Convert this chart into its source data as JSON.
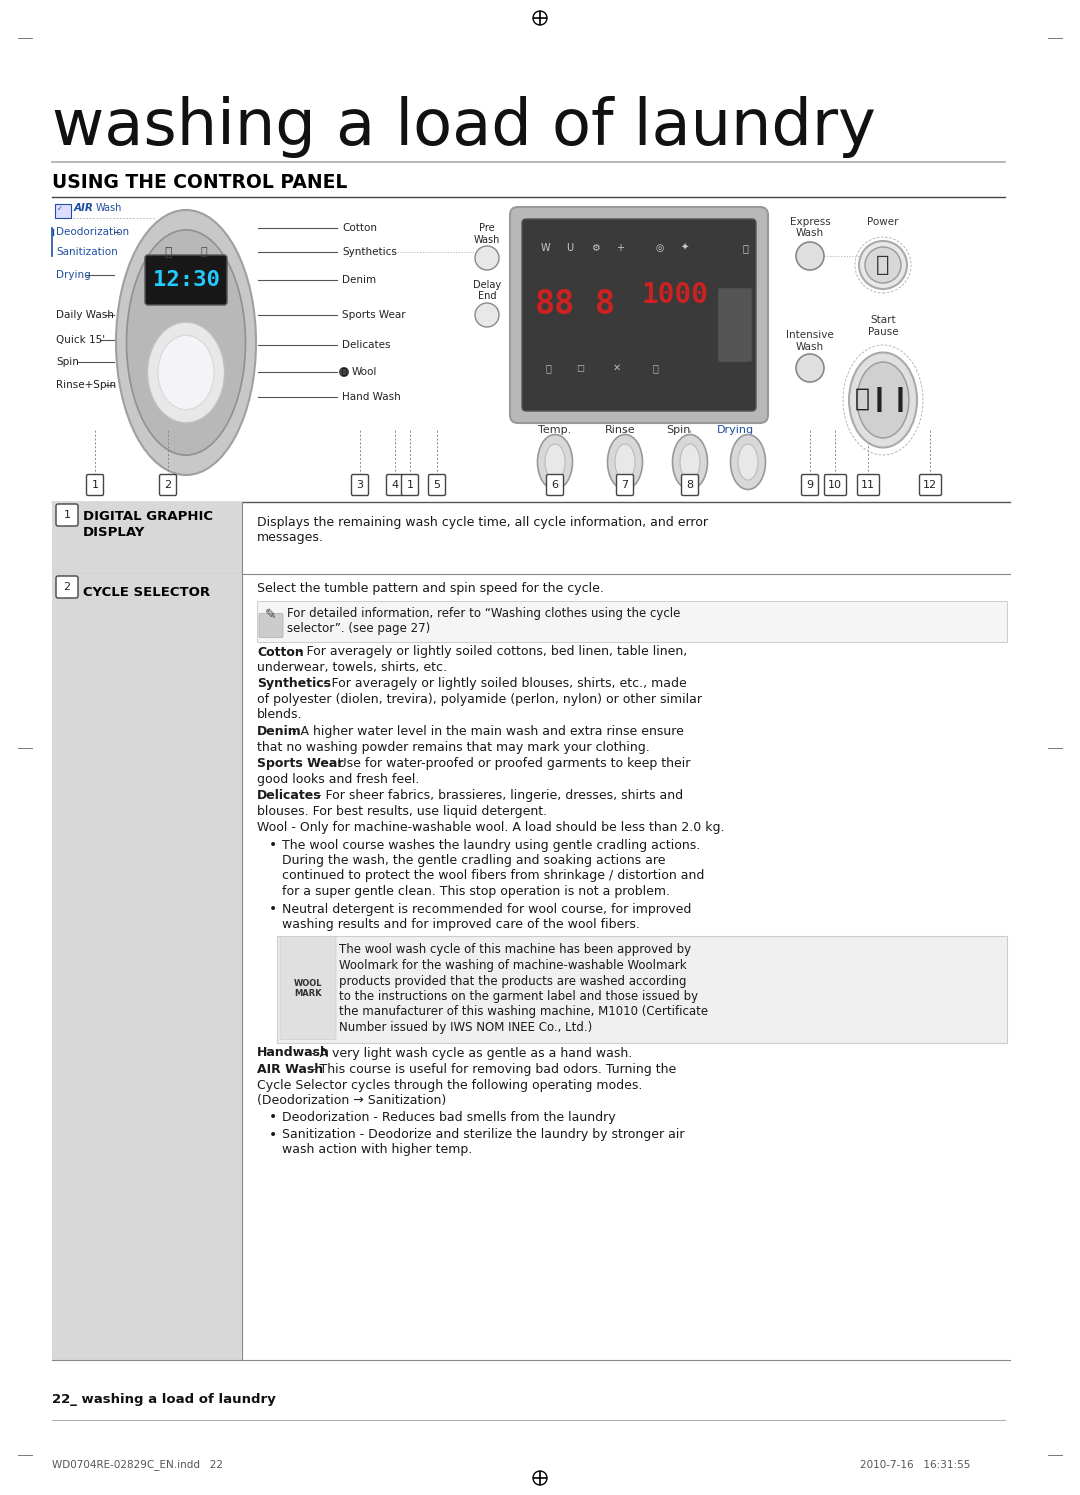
{
  "bg_color": "#ffffff",
  "title_text": "washing a load of laundry",
  "section_header": "USING THE CONTROL PANEL",
  "footer_left": "22_ washing a load of laundry",
  "footer_file": "WD0704RE-02829C_EN.indd   22",
  "footer_date": "2010-7-16   16:31:55",
  "text_color": "#1a1a1a",
  "blue_color": "#1e4fa0",
  "light_gray": "#cccccc",
  "mid_gray": "#aaaaaa",
  "panel_bg": "#d8d8d8",
  "lcd_bg": "#c0c0c0",
  "lcd_inner": "#383838",
  "knob_outer": "#b8b8b8",
  "knob_inner": "#d0d0d0",
  "knob_center": "#e8e8e8",
  "table_rows": [
    {
      "num": "1",
      "header_line1": "DIGITAL GRAPHIC",
      "header_line2": "DISPLAY",
      "body": "Displays the remaining wash cycle time, all cycle information, and error\nmessages."
    },
    {
      "num": "2",
      "header_line1": "CYCLE SELECTOR",
      "header_line2": "",
      "body_parts": [
        {
          "type": "normal",
          "text": "Select the tumble pattern and spin speed for the cycle."
        },
        {
          "type": "note",
          "text": "For detailed information, refer to “Washing clothes using the cycle\nselector”. (see page 27)"
        },
        {
          "type": "bold_intro",
          "bold": "Cotton",
          "rest": " - For averagely or lightly soiled cottons, bed linen, table linen,\nunderwear, towels, shirts, etc."
        },
        {
          "type": "bold_intro",
          "bold": "Synthetics",
          "rest": " - For averagely or lightly soiled blouses, shirts, etc., made\nof polyester (diolen, trevira), polyamide (perlon, nylon) or other similar\nblends."
        },
        {
          "type": "bold_intro",
          "bold": "Denim",
          "rest": " - A higher water level in the main wash and extra rinse ensure\nthat no washing powder remains that may mark your clothing."
        },
        {
          "type": "bold_intro",
          "bold": "Sports Wear",
          "rest": " - Use for water-proofed or proofed garments to keep their\ngood looks and fresh feel."
        },
        {
          "type": "bold_intro",
          "bold": "Delicates",
          "rest": " - For sheer fabrics, brassieres, lingerie, dresses, shirts and\nblouses. For best results, use liquid detergent."
        },
        {
          "type": "normal_bold_inline",
          "text": "Wool",
          "rest": " - Only for machine-washable wool. A load should be less than 2.0 kg."
        },
        {
          "type": "bullet",
          "text": "The wool course washes the laundry using gentle cradling actions.\nDuring the wash, the gentle cradling and soaking actions are\ncontinued to protect the wool fibers from shrinkage / distortion and\nfor a super gentle clean. This stop operation is not a problem."
        },
        {
          "type": "bullet",
          "text": "Neutral detergent is recommended for wool course, for improved\nwashing results and for improved care of the wool fibers."
        },
        {
          "type": "woolmark",
          "lines": [
            "The wool wash cycle of this machine has been approved by",
            "Woolmark for the washing of machine-washable Woolmark",
            "products provided that the products are washed according",
            "to the instructions on the garment label and those issued by",
            "the manufacturer of this washing machine, M1010 (Certificate",
            "Number issued by IWS NOM INEE Co., Ltd.)"
          ]
        },
        {
          "type": "bold_intro",
          "bold": "Handwash",
          "rest": " - A very light wash cycle as gentle as a hand wash."
        },
        {
          "type": "bold_intro",
          "bold": "AIR Wash",
          "rest": " - This course is useful for removing bad odors. Turning the\nCycle Selector cycles through the following operating modes.\n(Deodorization → Sanitization)"
        },
        {
          "type": "bullet",
          "text": "Deodorization - Reduces bad smells from the laundry"
        },
        {
          "type": "bullet",
          "text": "Sanitization - Deodorize and sterilize the laundry by stronger air\nwash action with higher temp."
        }
      ]
    }
  ]
}
